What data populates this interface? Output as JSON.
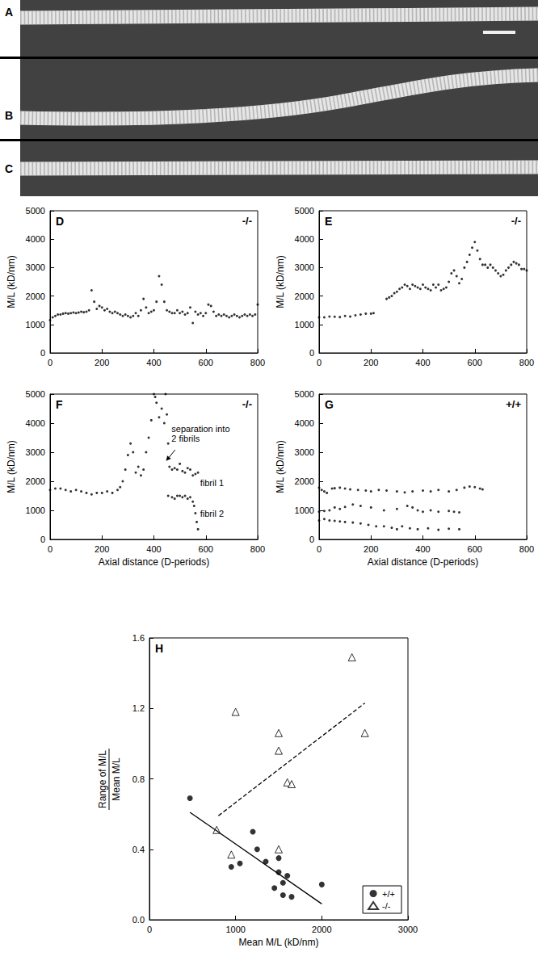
{
  "images": {
    "labels": [
      "A",
      "B",
      "C"
    ]
  },
  "chart_data": [
    {
      "type": "scatter",
      "title": "D",
      "subtitle": "-/-",
      "marker": "dot",
      "color": "#000000",
      "xlim": [
        0,
        800
      ],
      "xticks": [
        0,
        200,
        400,
        600,
        800
      ],
      "ylim": [
        0,
        5000
      ],
      "yticks": [
        0,
        1000,
        2000,
        3000,
        4000,
        5000
      ],
      "ylabel": "M/L (kD/nm)",
      "series": [
        {
          "x": [
            0,
            10,
            20,
            30,
            40,
            50,
            60,
            70,
            80,
            90,
            100,
            110,
            120,
            130,
            140,
            150,
            160,
            170,
            180,
            190,
            200,
            210,
            220,
            230,
            240,
            250,
            260,
            270,
            280,
            290,
            300,
            310,
            320,
            330,
            340,
            350,
            360,
            370,
            380,
            390,
            400,
            410,
            420,
            430,
            440,
            450,
            460,
            470,
            480,
            490,
            500,
            510,
            520,
            530,
            540,
            550,
            560,
            570,
            580,
            590,
            600,
            610,
            620,
            630,
            640,
            650,
            660,
            670,
            680,
            690,
            700,
            710,
            720,
            730,
            740,
            750,
            760,
            770,
            780,
            790,
            800
          ],
          "values": [
            1150,
            1250,
            1300,
            1350,
            1350,
            1380,
            1400,
            1380,
            1400,
            1420,
            1400,
            1420,
            1450,
            1430,
            1450,
            1500,
            2200,
            1800,
            1550,
            1650,
            1600,
            1500,
            1550,
            1450,
            1400,
            1450,
            1400,
            1350,
            1300,
            1350,
            1300,
            1250,
            1300,
            1400,
            1300,
            1500,
            1900,
            1600,
            1400,
            1450,
            1500,
            1800,
            2700,
            2400,
            1800,
            1500,
            1450,
            1400,
            1400,
            1500,
            1400,
            1450,
            1350,
            1400,
            1600,
            1050,
            1450,
            1350,
            1400,
            1300,
            1400,
            1700,
            1650,
            1450,
            1300,
            1350,
            1300,
            1350,
            1300,
            1250,
            1300,
            1350,
            1300,
            1250,
            1300,
            1350,
            1300,
            1350,
            1300,
            1350,
            1700
          ]
        }
      ]
    },
    {
      "type": "scatter",
      "title": "E",
      "subtitle": "-/-",
      "marker": "dot",
      "color": "#000000",
      "xlim": [
        0,
        800
      ],
      "xticks": [
        0,
        200,
        400,
        600,
        800
      ],
      "ylim": [
        0,
        5000
      ],
      "yticks": [
        0,
        1000,
        2000,
        3000,
        4000,
        5000
      ],
      "ylabel": "M/L (kD/nm)",
      "series": [
        {
          "x": [
            0,
            20,
            40,
            60,
            80,
            100,
            120,
            140,
            160,
            180,
            200,
            210,
            260,
            270,
            280,
            290,
            300,
            310,
            320,
            330,
            340,
            350,
            360,
            370,
            380,
            390,
            400,
            410,
            420,
            430,
            440,
            450,
            460,
            470,
            480,
            490,
            500,
            510,
            520,
            530,
            540,
            550,
            560,
            570,
            580,
            590,
            600,
            610,
            620,
            630,
            640,
            650,
            660,
            670,
            680,
            690,
            700,
            710,
            720,
            730,
            740,
            750,
            760,
            770,
            780,
            790,
            800
          ],
          "values": [
            1250,
            1250,
            1280,
            1270,
            1260,
            1300,
            1280,
            1320,
            1350,
            1380,
            1380,
            1400,
            1900,
            1950,
            2000,
            2100,
            2150,
            2250,
            2300,
            2400,
            2350,
            2250,
            2400,
            2350,
            2300,
            2250,
            2400,
            2300,
            2250,
            2200,
            2400,
            2300,
            2400,
            2200,
            2250,
            2300,
            2500,
            2800,
            2900,
            2700,
            2450,
            2600,
            3000,
            3200,
            3450,
            3700,
            3900,
            3600,
            3300,
            3100,
            3100,
            3000,
            3100,
            3000,
            2900,
            2800,
            2700,
            2750,
            2900,
            3000,
            3100,
            3200,
            3150,
            3100,
            2950,
            2950,
            2900
          ]
        }
      ]
    },
    {
      "type": "scatter",
      "title": "F",
      "subtitle": "-/-",
      "marker": "dot",
      "color": "#000000",
      "xlim": [
        0,
        800
      ],
      "xticks": [
        0,
        200,
        400,
        600,
        800
      ],
      "ylim": [
        0,
        5000
      ],
      "yticks": [
        0,
        1000,
        2000,
        3000,
        4000,
        5000
      ],
      "xlabel": "Axial distance (D-periods)",
      "ylabel": "M/L (kD/nm)",
      "annotations": [
        "separation into\n2 fibrils",
        "fibril 1",
        "fibril 2"
      ],
      "series": [
        {
          "x": [
            0,
            20,
            40,
            60,
            80,
            100,
            120,
            140,
            160,
            180,
            200,
            220,
            240,
            260,
            270,
            280,
            290,
            300,
            310,
            320,
            330,
            340,
            350,
            360,
            370,
            380,
            390,
            400,
            405,
            410,
            420,
            430,
            440,
            445,
            450
          ],
          "values": [
            1700,
            1750,
            1750,
            1700,
            1650,
            1700,
            1650,
            1600,
            1550,
            1600,
            1600,
            1650,
            1600,
            1700,
            1800,
            2000,
            2400,
            2900,
            3300,
            3000,
            2300,
            2500,
            2200,
            2400,
            3000,
            3500,
            4100,
            5000,
            4900,
            4700,
            4200,
            4500,
            4000,
            5000,
            4300
          ]
        },
        {
          "x": [
            455,
            460,
            470,
            480,
            490,
            500,
            510,
            520,
            530,
            540,
            550,
            560,
            570
          ],
          "values": [
            3300,
            2500,
            2400,
            2450,
            2400,
            2600,
            2350,
            2300,
            2450,
            2400,
            2200,
            2250,
            2300
          ]
        },
        {
          "x": [
            455,
            470,
            480,
            490,
            500,
            510,
            520,
            530,
            540,
            550,
            555,
            560,
            565,
            570
          ],
          "values": [
            1500,
            1450,
            1400,
            1500,
            1500,
            1450,
            1500,
            1400,
            1450,
            1300,
            1150,
            900,
            600,
            350
          ]
        }
      ]
    },
    {
      "type": "scatter",
      "title": "G",
      "subtitle": "+/+",
      "marker": "dot",
      "color": "#000000",
      "xlim": [
        0,
        800
      ],
      "xticks": [
        0,
        200,
        400,
        600,
        800
      ],
      "ylim": [
        0,
        5000
      ],
      "yticks": [
        0,
        1000,
        2000,
        3000,
        4000,
        5000
      ],
      "xlabel": "Axial distance (D-periods)",
      "ylabel": "M/L (kD/nm)",
      "series": [
        {
          "x": [
            0,
            10,
            20,
            30,
            50,
            60,
            80,
            100,
            120,
            150,
            180,
            200,
            230,
            260,
            300,
            330,
            360,
            400,
            430,
            460,
            500,
            530,
            560,
            580,
            600,
            620,
            630
          ],
          "values": [
            1780,
            1700,
            1650,
            1600,
            1750,
            1760,
            1780,
            1750,
            1720,
            1700,
            1680,
            1650,
            1700,
            1680,
            1650,
            1620,
            1650,
            1680,
            1650,
            1700,
            1650,
            1700,
            1780,
            1820,
            1800,
            1750,
            1720
          ]
        },
        {
          "x": [
            0,
            20,
            40,
            60,
            80,
            100,
            130,
            160,
            200,
            250,
            300,
            340,
            360,
            380,
            400,
            430,
            460,
            500,
            520,
            540
          ],
          "values": [
            950,
            980,
            1000,
            1100,
            1050,
            1120,
            1200,
            1150,
            1100,
            1000,
            1050,
            1150,
            1100,
            1000,
            950,
            1000,
            950,
            980,
            950,
            930
          ]
        },
        {
          "x": [
            0,
            20,
            40,
            60,
            80,
            100,
            130,
            160,
            190,
            220,
            250,
            280,
            300,
            320,
            350,
            380,
            420,
            460,
            500,
            540
          ],
          "values": [
            650,
            700,
            650,
            640,
            620,
            600,
            580,
            550,
            500,
            450,
            450,
            400,
            350,
            450,
            380,
            350,
            380,
            330,
            370,
            350
          ]
        }
      ]
    },
    {
      "type": "scatter",
      "title": "H",
      "legend": "lower right",
      "xlim": [
        0,
        3000
      ],
      "xticks": [
        0,
        1000,
        2000,
        3000
      ],
      "ylim": [
        0,
        1.6
      ],
      "yticks": [
        {
          "value": 0,
          "label": "0.0"
        },
        0.4,
        0.8,
        1.2,
        1.6
      ],
      "xlabel": "Mean M/L (kD/nm)",
      "ylabel": [
        "Range of M/L",
        "Mean M/L"
      ],
      "series": [
        {
          "name": "+/+",
          "marker": "circle",
          "color": "#000000",
          "x": [
            470,
            950,
            1050,
            1200,
            1250,
            1350,
            1450,
            1500,
            1500,
            1550,
            1550,
            1600,
            1650,
            2000
          ],
          "values": [
            0.69,
            0.3,
            0.32,
            0.5,
            0.4,
            0.33,
            0.18,
            0.27,
            0.35,
            0.14,
            0.21,
            0.25,
            0.13,
            0.2
          ]
        },
        {
          "name": "-/-",
          "marker": "triangle_open",
          "color": "#000000",
          "x": [
            780,
            950,
            1000,
            1500,
            1500,
            1500,
            1600,
            1650,
            2350,
            2500
          ],
          "values": [
            0.51,
            0.37,
            1.18,
            1.06,
            0.96,
            0.4,
            0.78,
            0.77,
            1.49,
            1.06
          ]
        },
        {
          "type": "line",
          "line_style": "solid",
          "color": "#000000",
          "x": [
            470,
            2000
          ],
          "values": [
            0.61,
            0.09
          ]
        },
        {
          "type": "line",
          "line_style": "dashed",
          "color": "#000000",
          "x": [
            800,
            2500
          ],
          "values": [
            0.59,
            1.23
          ]
        }
      ]
    }
  ]
}
